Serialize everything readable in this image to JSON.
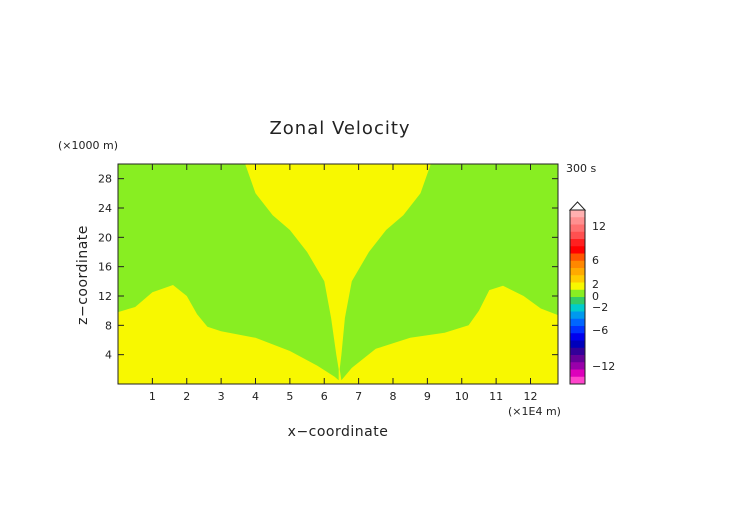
{
  "chart_data": {
    "type": "heatmap",
    "title": "Zonal Velocity",
    "xlabel": "x−coordinate",
    "ylabel": "z−coordinate",
    "x_unit": "(×1E4 m)",
    "y_unit": "(×1000 m)",
    "time_label": "300 s",
    "xlim": [
      0,
      12.8
    ],
    "ylim": [
      0,
      30
    ],
    "x_ticks": [
      1,
      2,
      3,
      4,
      5,
      6,
      7,
      8,
      9,
      10,
      11,
      12
    ],
    "x_tick_labels": [
      "1",
      "2",
      "3",
      "4",
      "5",
      "6",
      "7",
      "8",
      "9",
      "10",
      "11",
      "12"
    ],
    "y_ticks": [
      4,
      8,
      12,
      16,
      20,
      24,
      28
    ],
    "y_tick_labels": [
      "4",
      "8",
      "12",
      "16",
      "20",
      "24",
      "28"
    ],
    "background_value_color": "#f8f800",
    "region_color": "#88ee22",
    "regions": [
      {
        "value_range": "-1 to 0",
        "left_boundary": [
          [
            3.7,
            30
          ],
          [
            4.0,
            26
          ],
          [
            4.5,
            23
          ],
          [
            5.0,
            21
          ],
          [
            5.5,
            18
          ],
          [
            6.0,
            14
          ],
          [
            6.2,
            9
          ],
          [
            6.35,
            4
          ],
          [
            6.42,
            2
          ]
        ],
        "lower_boundary": [
          [
            0,
            9.8
          ],
          [
            0.5,
            10.5
          ],
          [
            1.0,
            12.5
          ],
          [
            1.6,
            13.5
          ],
          [
            2.0,
            12
          ],
          [
            2.3,
            9.5
          ],
          [
            2.6,
            7.8
          ],
          [
            3.0,
            7.2
          ],
          [
            4.0,
            6.3
          ],
          [
            5.0,
            4.5
          ],
          [
            5.8,
            2.5
          ],
          [
            6.3,
            1.0
          ],
          [
            6.42,
            0.5
          ]
        ]
      },
      {
        "value_range": "-1 to 0",
        "right_boundary": [
          [
            9.1,
            30
          ],
          [
            8.8,
            26
          ],
          [
            8.3,
            23
          ],
          [
            7.8,
            21
          ],
          [
            7.3,
            18
          ],
          [
            6.8,
            14
          ],
          [
            6.6,
            9
          ],
          [
            6.5,
            4
          ],
          [
            6.45,
            2
          ]
        ],
        "lower_boundary": [
          [
            12.8,
            9.4
          ],
          [
            12.3,
            10.3
          ],
          [
            11.8,
            12.0
          ],
          [
            11.2,
            13.4
          ],
          [
            10.8,
            12.8
          ],
          [
            10.5,
            10
          ],
          [
            10.2,
            8
          ],
          [
            9.5,
            7
          ],
          [
            8.5,
            6.3
          ],
          [
            7.5,
            4.8
          ],
          [
            6.8,
            2.2
          ],
          [
            6.5,
            0.5
          ]
        ]
      }
    ],
    "colorbar": {
      "ticks": [
        12,
        6,
        2,
        0,
        -2,
        -6,
        -12
      ],
      "tick_labels": [
        "12",
        "6",
        "2",
        "0",
        "−2",
        "−6",
        "−12"
      ],
      "colors_top_to_bottom": [
        "#ffb0b0",
        "#ff9090",
        "#ff7070",
        "#ff5050",
        "#ff2020",
        "#ff0000",
        "#ff5500",
        "#ff8800",
        "#ffaa00",
        "#ffcc00",
        "#f8f800",
        "#88ee22",
        "#33cc66",
        "#00cccc",
        "#0099ee",
        "#0066ff",
        "#0033ff",
        "#0000ee",
        "#0000bb",
        "#330099",
        "#660099",
        "#9900aa",
        "#dd00bb",
        "#ff44cc"
      ]
    }
  }
}
